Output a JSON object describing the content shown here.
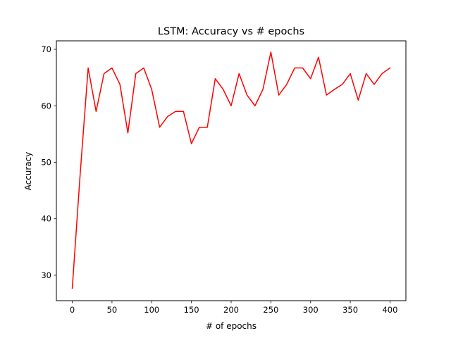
{
  "chart_data": {
    "type": "line",
    "title": "LSTM: Accuracy vs # epochs",
    "xlabel": "# of epochs",
    "ylabel": "Accuracy",
    "xlim": [
      -20,
      420
    ],
    "ylim": [
      25.5,
      71.5
    ],
    "xticks": [
      0,
      50,
      100,
      150,
      200,
      250,
      300,
      350,
      400
    ],
    "yticks": [
      30,
      40,
      50,
      60,
      70
    ],
    "grid": false,
    "legend": "none",
    "series": [
      {
        "color": "#ff0000",
        "x": [
          0,
          10,
          20,
          30,
          40,
          50,
          60,
          70,
          80,
          90,
          100,
          110,
          120,
          130,
          140,
          150,
          160,
          170,
          180,
          190,
          200,
          210,
          220,
          230,
          240,
          250,
          260,
          270,
          280,
          290,
          300,
          310,
          320,
          330,
          340,
          350,
          360,
          370,
          380,
          390,
          400
        ],
        "values": [
          27.7,
          48.0,
          66.7,
          59.0,
          65.7,
          66.7,
          63.8,
          55.2,
          65.7,
          66.7,
          62.9,
          56.2,
          58.1,
          59.0,
          59.0,
          53.3,
          56.2,
          56.2,
          64.8,
          62.9,
          60.0,
          65.7,
          61.9,
          60.0,
          62.9,
          69.5,
          61.9,
          63.8,
          66.7,
          66.7,
          64.8,
          68.6,
          61.9,
          62.9,
          63.8,
          65.7,
          61.0,
          65.7,
          63.8,
          65.7,
          66.7
        ]
      }
    ]
  }
}
